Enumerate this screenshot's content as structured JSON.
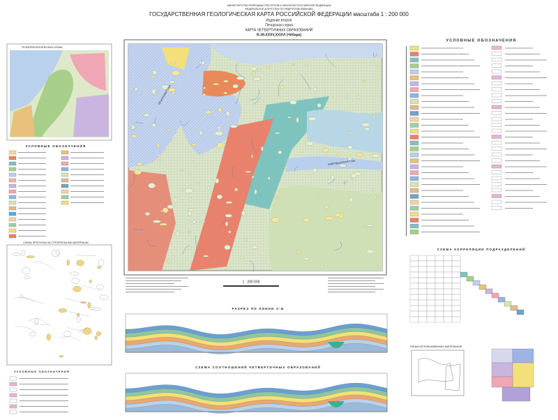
{
  "header": {
    "ministry": "МИНИСТЕРСТВО ПРИРОДНЫХ РЕСУРСОВ И ЭКОЛОГИИ РОССИЙСКОЙ ФЕДЕРАЦИИ",
    "agency": "ФЕДЕРАЛЬНОЕ АГЕНТСТВО ПО НЕДРОПОЛЬЗОВАНИЮ",
    "title": "ГОСУДАРСТВЕННАЯ ГЕОЛОГИЧЕСКАЯ КАРТА РОССИЙСКОЙ ФЕДЕРАЦИИ масштаба 1 : 200 000",
    "edition": "Издание второе",
    "series": "Печорская серия",
    "map_title": "КАРТА ЧЕТВЕРТИЧНЫХ ОБРАЗОВАНИЙ",
    "sheet": "R-39-XXXV,XXXVI (Чёбара)"
  },
  "panels": {
    "geomorph": "ГЕОМОРФОЛОГИЧЕСКАЯ СХЕМА",
    "left_legend": "УСЛОВНЫЕ ОБОЗНАЧЕНИЯ",
    "materials": "СХЕМА ПРОГНОЗА НА СТРОИТЕЛЬНЫЕ МАТЕРИАЛЫ",
    "bottom_legend": "УСЛОВНЫЕ ОБОЗНАЧЕНИЯ",
    "main_legend": "УСЛОВНЫЕ ОБОЗНАЧЕНИЯ",
    "correlation": "СХЕМА КОРРЕЛЯЦИИ ПОДРАЗДЕЛЕНИЙ",
    "section": "РАЗРЕЗ ПО ЛИНИИ А-Б",
    "relations": "СХЕМА СООТНОШЕНИЙ ЧЕТВЕРТИЧНЫХ ОБРАЗОВАНИЙ",
    "used": "СХЕМА ИСПОЛЬЗОВАННЫХ МАТЕРИАЛОВ",
    "scale": "1 : 200 000"
  },
  "map_labels": [
    "ПЕЧОРСКАЯ ГУБА",
    "ХАЙПУДЫРСКАЯ ГУБА"
  ]
}
